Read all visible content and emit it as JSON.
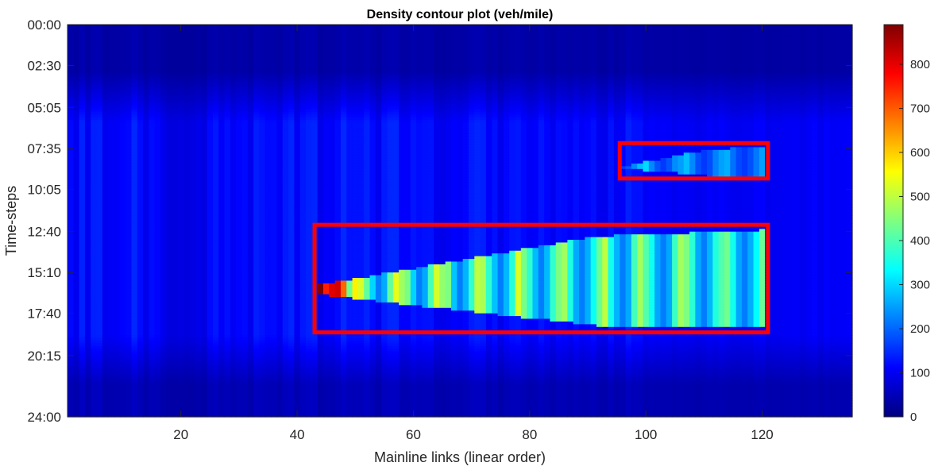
{
  "chart_data": {
    "type": "heatmap",
    "title": "Density contour plot (veh/mile)",
    "xlabel": "Mainline links (linear order)",
    "ylabel": "Time-steps",
    "x_range": [
      1,
      135
    ],
    "x_ticks": [
      20,
      40,
      60,
      80,
      100,
      120
    ],
    "y_ticks": [
      "00:00",
      "02:30",
      "05:05",
      "07:35",
      "10:05",
      "12:40",
      "15:10",
      "17:40",
      "20:15",
      "24:00"
    ],
    "colorbar": {
      "colormap": "jet",
      "range": [
        0,
        890
      ],
      "ticks": [
        0,
        100,
        200,
        300,
        400,
        500,
        600,
        700,
        800
      ]
    },
    "background_density": {
      "offpeak": 40,
      "daytime": 120,
      "note_regions": [
        {
          "links": [
            17,
            24
          ],
          "density": 75
        },
        {
          "links": [
            100,
            135
          ],
          "density": 95
        }
      ]
    },
    "congestion_regions": [
      {
        "name": "morning-congestion",
        "link_start": 96,
        "link_end": 120,
        "time_start": "07:30",
        "time_end": "09:15",
        "peak_time": "08:40",
        "density_range": [
          160,
          440
        ]
      },
      {
        "name": "afternoon-congestion",
        "link_start": 44,
        "link_end": 120,
        "time_start": "12:35",
        "time_end": "18:25",
        "peak_time": "15:55",
        "density_range": [
          220,
          890
        ]
      }
    ],
    "highlight_boxes": [
      {
        "name": "morning-box",
        "link_range": [
          95.5,
          121
        ],
        "time_range": [
          "07:15",
          "09:25"
        ],
        "color": "#ff0000"
      },
      {
        "name": "afternoon-box",
        "link_range": [
          43,
          121
        ],
        "time_range": [
          "12:15",
          "18:50"
        ],
        "color": "#ff0000"
      }
    ]
  }
}
